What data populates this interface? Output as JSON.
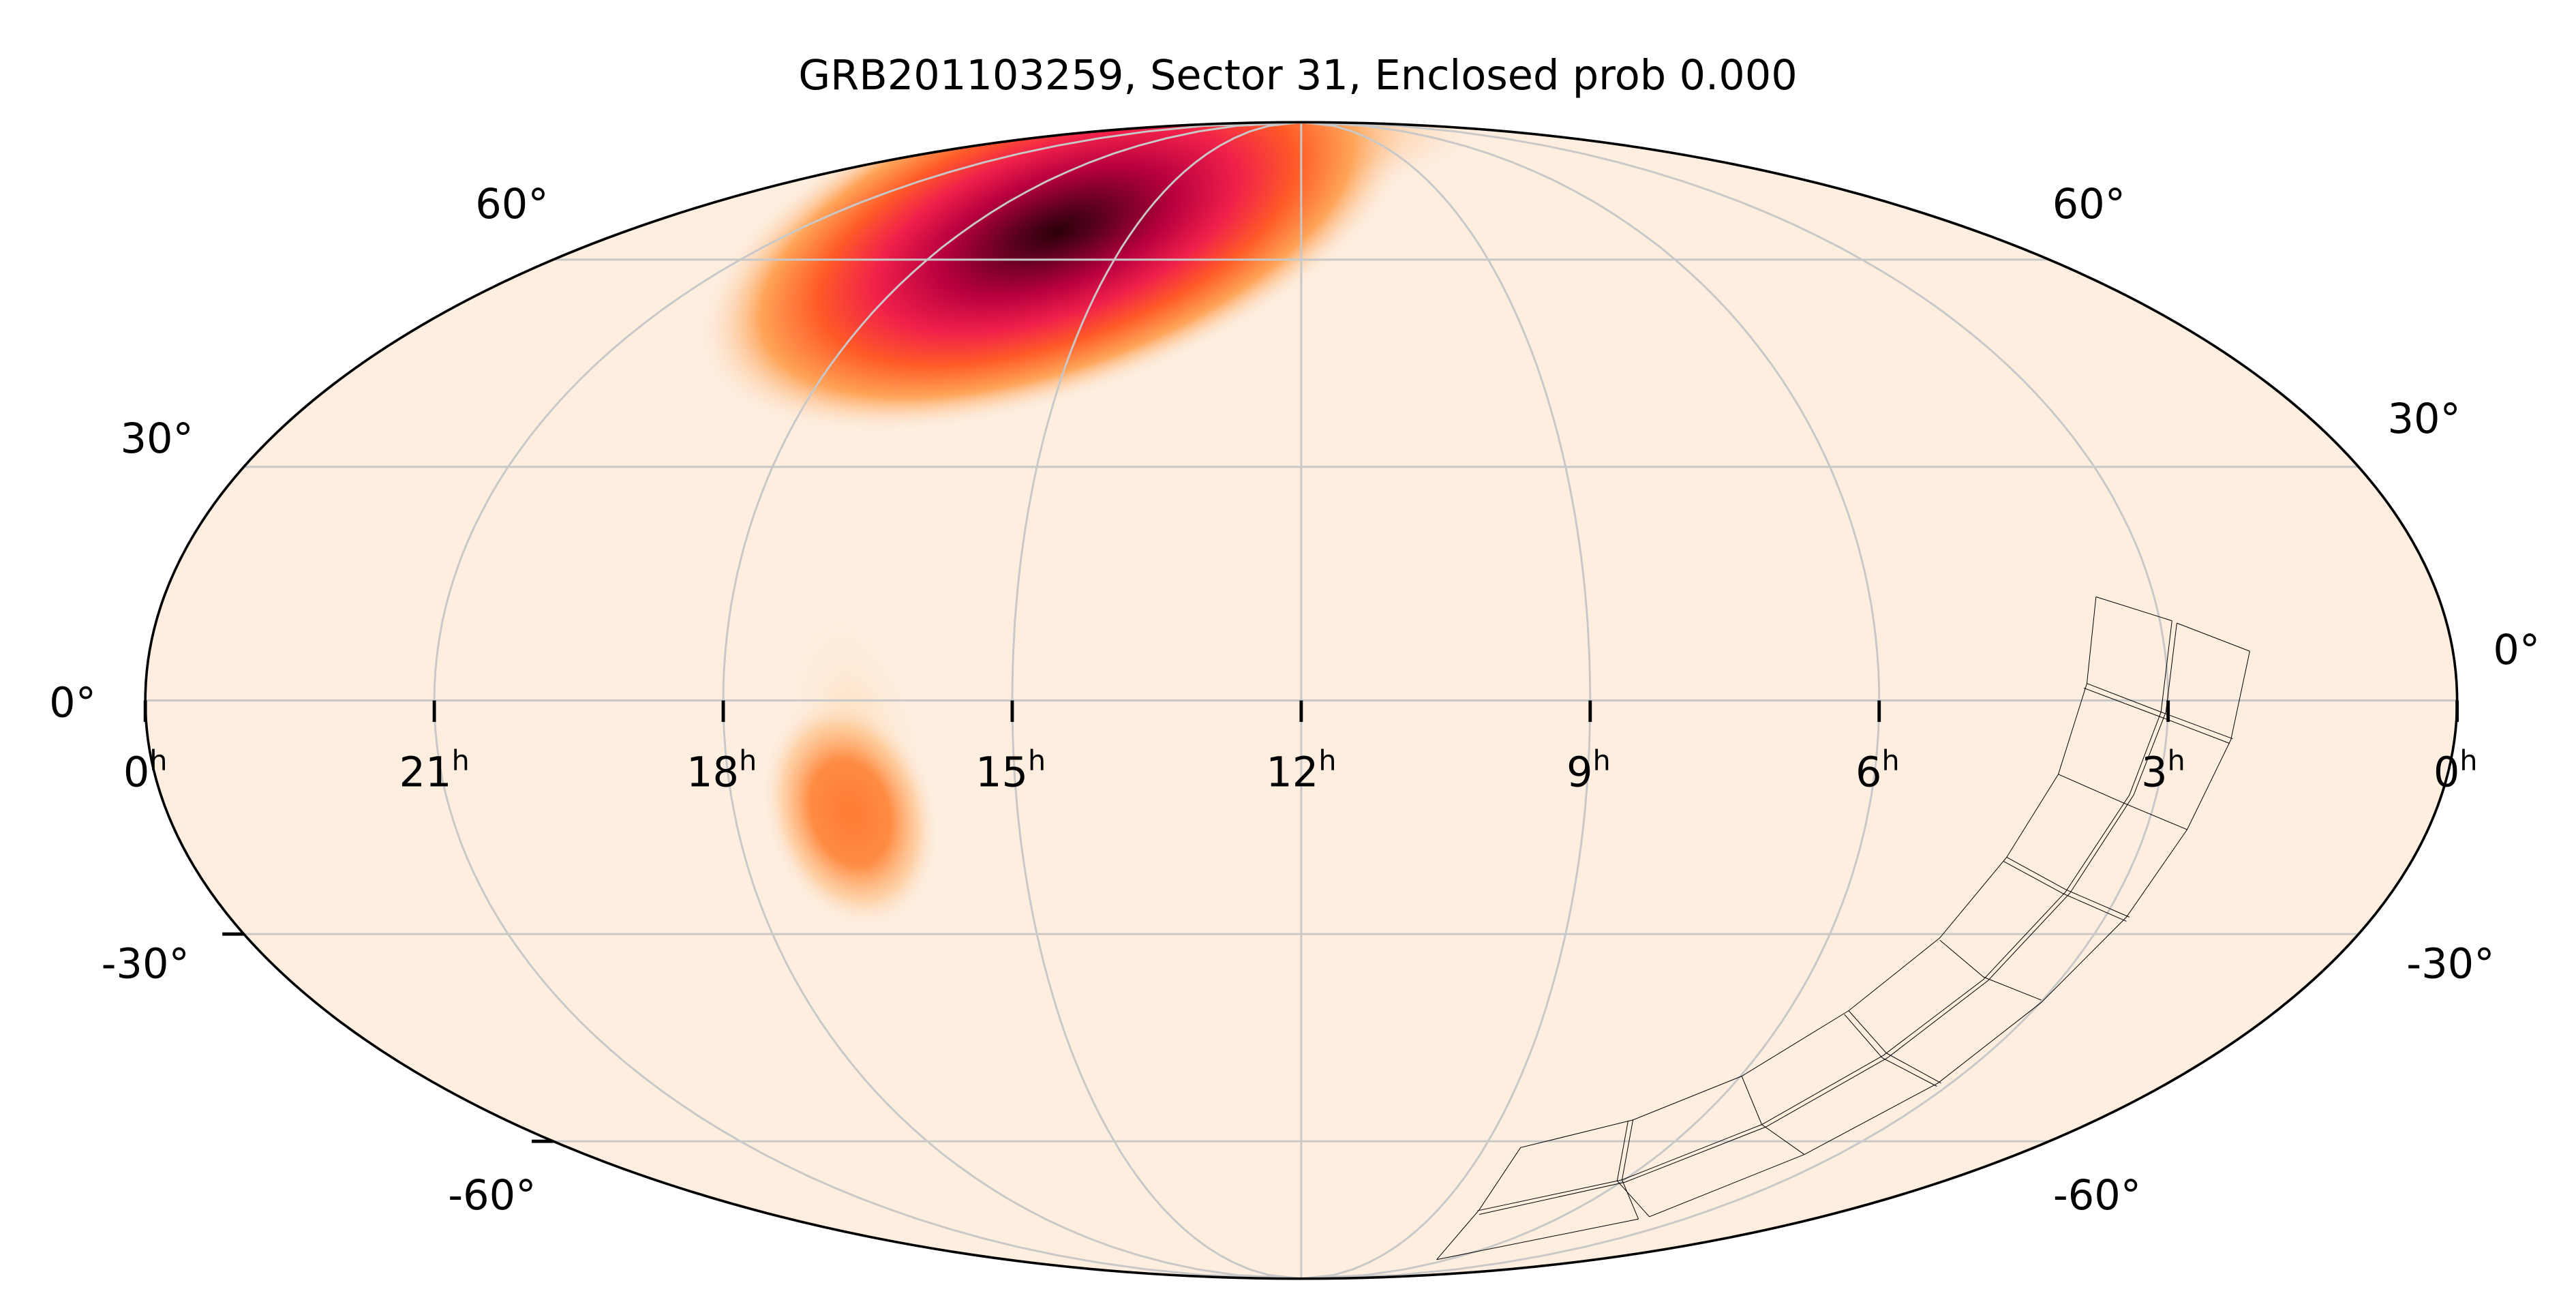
{
  "chart_data": {
    "type": "heatmap",
    "projection": "mollweide",
    "title": "GRB201103259, Sector 31, Enclosed prob 0.000",
    "xlabel": "",
    "ylabel": "",
    "x_ticks": [
      {
        "ra_h": 24,
        "label": "0",
        "sup": "h"
      },
      {
        "ra_h": 21,
        "label": "21",
        "sup": "h"
      },
      {
        "ra_h": 18,
        "label": "18",
        "sup": "h"
      },
      {
        "ra_h": 15,
        "label": "15",
        "sup": "h"
      },
      {
        "ra_h": 12,
        "label": "12",
        "sup": "h"
      },
      {
        "ra_h": 9,
        "label": "9",
        "sup": "h"
      },
      {
        "ra_h": 6,
        "label": "6",
        "sup": "h"
      },
      {
        "ra_h": 3,
        "label": "3",
        "sup": "h"
      },
      {
        "ra_h": 0,
        "label": "0",
        "sup": "h"
      }
    ],
    "y_ticks": [
      "60°",
      "30°",
      "0°",
      "-30°",
      "-60°"
    ],
    "grid": true,
    "ra_range_h": [
      0,
      24
    ],
    "dec_range_deg": [
      -90,
      90
    ],
    "colormap": [
      "#fdeee0",
      "#ffb070",
      "#ff6a2a",
      "#e8204a",
      "#a0003a",
      "#2a0008"
    ],
    "probability_peaks": [
      {
        "ra_h": 16.3,
        "dec_deg": 68,
        "relative_intensity": 1.0
      },
      {
        "ra_h": 16.8,
        "dec_deg": -14,
        "relative_intensity": 0.35
      }
    ],
    "footprint": "TESS sector 31 camera/CCD outlines, southern sky, RA ~1h-9h"
  }
}
